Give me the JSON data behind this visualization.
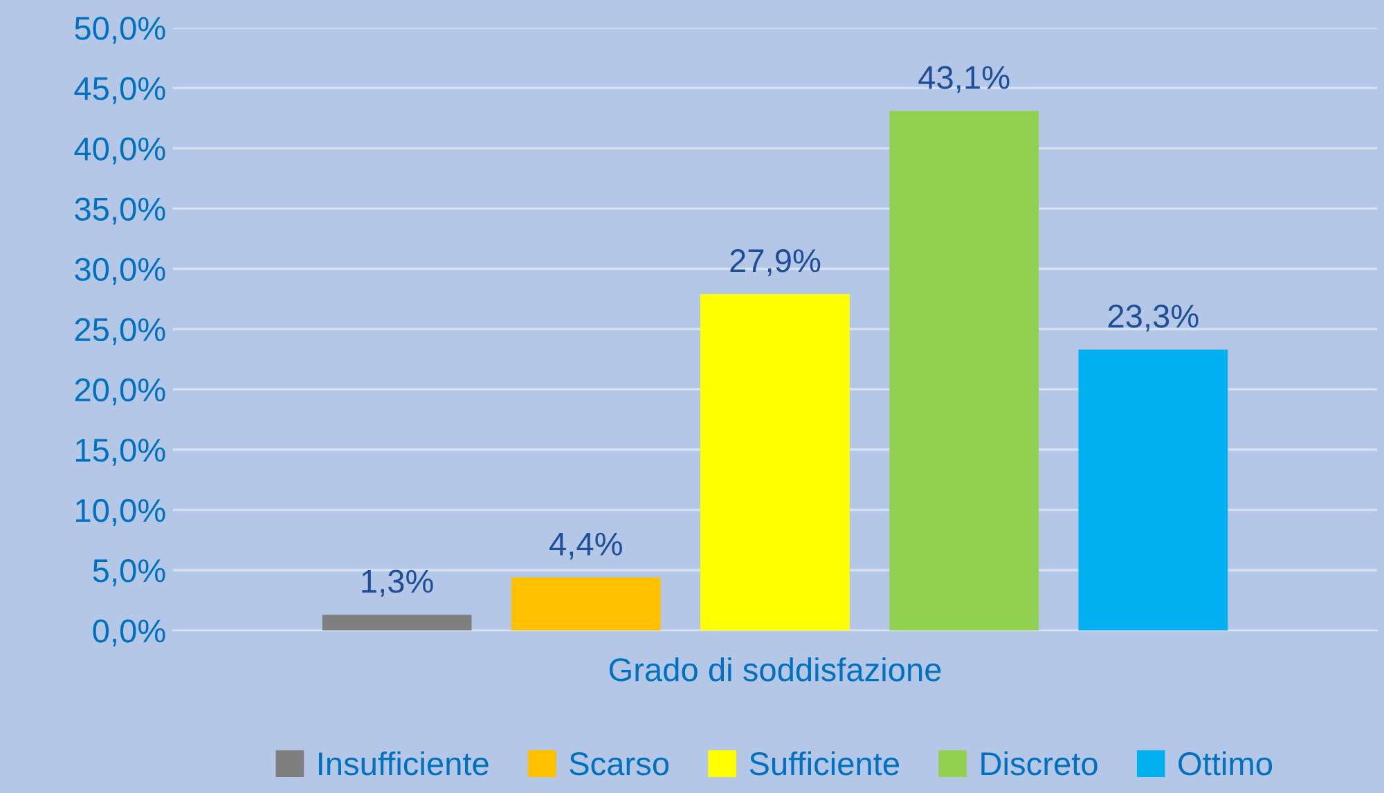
{
  "chart_data": {
    "type": "bar",
    "categories": [
      "Grado di soddisfazione"
    ],
    "series": [
      {
        "name": "Insufficiente",
        "color": "#7f7f7f",
        "values": [
          1.3
        ],
        "value_labels": [
          "1,3%"
        ]
      },
      {
        "name": "Scarso",
        "color": "#ffc000",
        "values": [
          4.4
        ],
        "value_labels": [
          "4,4%"
        ]
      },
      {
        "name": "Sufficiente",
        "color": "#ffff00",
        "values": [
          27.9
        ],
        "value_labels": [
          "27,9%"
        ]
      },
      {
        "name": "Discreto",
        "color": "#92d050",
        "values": [
          43.1
        ],
        "value_labels": [
          "43,1%"
        ]
      },
      {
        "name": "Ottimo",
        "color": "#00b0f0",
        "values": [
          23.3
        ],
        "value_labels": [
          "23,3%"
        ]
      }
    ],
    "ylim": [
      0,
      50
    ],
    "yticks": [
      {
        "value": 0,
        "label": "0,0%"
      },
      {
        "value": 5,
        "label": "5,0%"
      },
      {
        "value": 10,
        "label": "10,0%"
      },
      {
        "value": 15,
        "label": "15,0%"
      },
      {
        "value": 20,
        "label": "20,0%"
      },
      {
        "value": 25,
        "label": "25,0%"
      },
      {
        "value": 30,
        "label": "30,0%"
      },
      {
        "value": 35,
        "label": "35,0%"
      },
      {
        "value": 40,
        "label": "40,0%"
      },
      {
        "value": 45,
        "label": "45,0%"
      },
      {
        "value": 50,
        "label": "50,0%"
      }
    ],
    "grid": "y",
    "legend": "bottom"
  }
}
